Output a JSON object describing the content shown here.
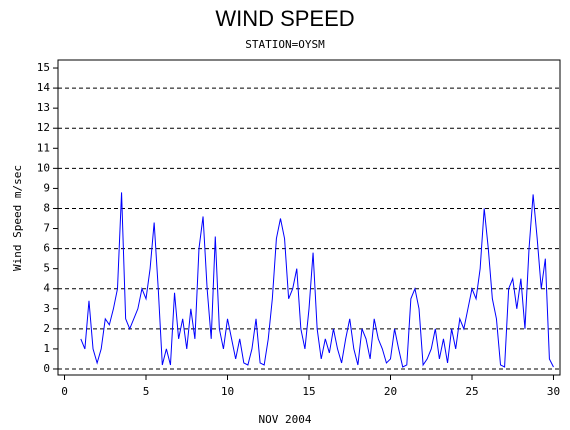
{
  "chart_data": {
    "type": "line",
    "title": "WIND SPEED",
    "subtitle": "STATION=OYSM",
    "x_label": "NOV 2004",
    "y_label": "Wind Speed m/sec",
    "x": [
      1,
      1.25,
      1.5,
      1.75,
      2,
      2.25,
      2.5,
      2.75,
      3,
      3.25,
      3.5,
      3.75,
      4,
      4.25,
      4.5,
      4.75,
      5,
      5.25,
      5.5,
      5.75,
      6,
      6.25,
      6.5,
      6.75,
      7,
      7.25,
      7.5,
      7.75,
      8,
      8.25,
      8.5,
      8.75,
      9,
      9.25,
      9.5,
      9.75,
      10,
      10.25,
      10.5,
      10.75,
      11,
      11.25,
      11.5,
      11.75,
      12,
      12.25,
      12.5,
      12.75,
      13,
      13.25,
      13.5,
      13.75,
      14,
      14.25,
      14.5,
      14.75,
      15,
      15.25,
      15.5,
      15.75,
      16,
      16.25,
      16.5,
      16.75,
      17,
      17.25,
      17.5,
      17.75,
      18,
      18.25,
      18.5,
      18.75,
      19,
      19.25,
      19.5,
      19.75,
      20,
      20.25,
      20.5,
      20.75,
      21,
      21.25,
      21.5,
      21.75,
      22,
      22.25,
      22.5,
      22.75,
      23,
      23.25,
      23.5,
      23.75,
      24,
      24.25,
      24.5,
      24.75,
      25,
      25.25,
      25.5,
      25.75,
      26,
      26.25,
      26.5,
      26.75,
      27,
      27.25,
      27.5,
      27.75,
      28,
      28.25,
      28.5,
      28.75,
      29,
      29.25,
      29.5,
      29.75,
      30
    ],
    "series": [
      {
        "name": "Wind Speed",
        "color": "#0000ff",
        "values": [
          1.5,
          1.0,
          3.4,
          1.0,
          0.3,
          1.0,
          2.5,
          2.2,
          3.0,
          4.0,
          8.8,
          2.5,
          2.0,
          2.5,
          3.0,
          4.0,
          3.5,
          5.0,
          7.3,
          4.0,
          0.2,
          1.0,
          0.2,
          3.8,
          1.5,
          2.5,
          1.0,
          3.0,
          1.5,
          6.0,
          7.6,
          4.0,
          1.5,
          6.6,
          2.0,
          1.0,
          2.5,
          1.5,
          0.5,
          1.5,
          0.3,
          0.2,
          1.0,
          2.5,
          0.3,
          0.2,
          1.5,
          3.5,
          6.5,
          7.5,
          6.5,
          3.5,
          4.0,
          5.0,
          2.0,
          1.0,
          3.0,
          5.8,
          2.0,
          0.5,
          1.5,
          0.8,
          2.0,
          1.0,
          0.3,
          1.5,
          2.5,
          1.0,
          0.2,
          2.0,
          1.5,
          0.5,
          2.5,
          1.5,
          1.0,
          0.3,
          0.5,
          2.0,
          1.0,
          0.1,
          0.2,
          3.5,
          4.0,
          3.0,
          0.2,
          0.5,
          1.0,
          2.0,
          0.5,
          1.5,
          0.3,
          2.0,
          1.0,
          2.5,
          2.0,
          3.0,
          4.0,
          3.5,
          5.0,
          8.0,
          6.0,
          3.5,
          2.5,
          0.2,
          0.1,
          4.0,
          4.5,
          3.0,
          4.5,
          2.0,
          6.0,
          8.7,
          6.5,
          4.0,
          5.5,
          0.5,
          0.1
        ]
      }
    ],
    "xlim": [
      -0.4,
      30.4
    ],
    "xticks": [
      0,
      5,
      10,
      15,
      20,
      25,
      30
    ],
    "ylim": [
      -0.3,
      15.4
    ],
    "yticks": [
      0,
      1,
      2,
      3,
      4,
      5,
      6,
      7,
      8,
      9,
      10,
      11,
      12,
      13,
      14,
      15
    ],
    "grid_y": [
      0,
      2,
      4,
      6,
      8,
      10,
      12,
      14
    ]
  }
}
